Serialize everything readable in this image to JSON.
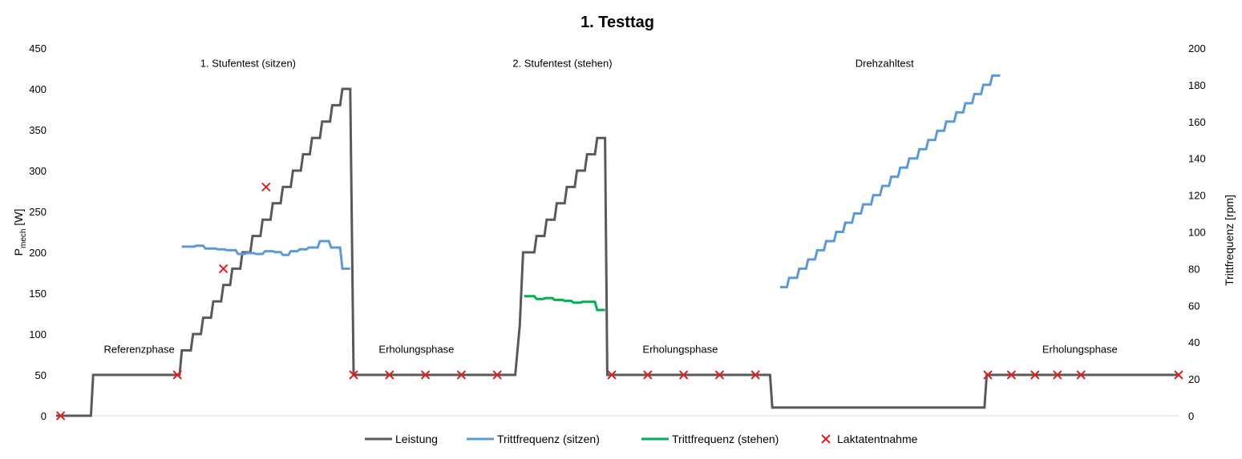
{
  "chart_data": {
    "type": "line",
    "title": "1. Testtag",
    "ylabel_left": {
      "main": "P",
      "sub": "mech",
      "unit": " [W]"
    },
    "ylabel_right": "Trittfrequenz [rpm]",
    "xlabel": "",
    "ylim_left": [
      0,
      450
    ],
    "ylim_right": [
      0,
      200
    ],
    "yticks_left": [
      "0",
      "50",
      "100",
      "150",
      "200",
      "250",
      "300",
      "350",
      "400",
      "450"
    ],
    "yticks_right": [
      "0",
      "20",
      "40",
      "60",
      "80",
      "100",
      "120",
      "140",
      "160",
      "180",
      "200"
    ],
    "xlim": [
      0,
      100
    ],
    "grid": false,
    "legend_position": "bottom",
    "annotations": [
      {
        "text": "1. Stufentest (sitzen)",
        "x": 17.1,
        "y": 432
      },
      {
        "text": "2. Stufentest (stehen)",
        "x": 45.1,
        "y": 432
      },
      {
        "text": "Drehzahltest",
        "x": 73.8,
        "y": 432
      },
      {
        "text": "Referenzphase",
        "x": 7.4,
        "y": 82
      },
      {
        "text": "Erholungsphase",
        "x": 32.1,
        "y": 82
      },
      {
        "text": "Erholungsphase",
        "x": 55.6,
        "y": 82
      },
      {
        "text": "Erholungsphase",
        "x": 91.2,
        "y": 82
      }
    ],
    "series": [
      {
        "name": "Leistung",
        "color": "#595959",
        "axis": "left",
        "points": [
          [
            0,
            0
          ],
          [
            3.1,
            0
          ],
          [
            3.3,
            50
          ],
          [
            11,
            50
          ],
          [
            11.2,
            80
          ],
          [
            12,
            80
          ],
          [
            12.2,
            100
          ],
          [
            12.9,
            100
          ],
          [
            13.1,
            120
          ],
          [
            13.8,
            120
          ],
          [
            14,
            140
          ],
          [
            14.7,
            140
          ],
          [
            14.9,
            160
          ],
          [
            15.5,
            160
          ],
          [
            15.7,
            180
          ],
          [
            16.4,
            180
          ],
          [
            16.6,
            200
          ],
          [
            17.3,
            200
          ],
          [
            17.5,
            220
          ],
          [
            18.2,
            220
          ],
          [
            18.4,
            240
          ],
          [
            19.1,
            240
          ],
          [
            19.3,
            260
          ],
          [
            20,
            260
          ],
          [
            20.2,
            280
          ],
          [
            20.9,
            280
          ],
          [
            21.1,
            300
          ],
          [
            21.8,
            300
          ],
          [
            22,
            320
          ],
          [
            22.6,
            320
          ],
          [
            22.8,
            340
          ],
          [
            23.5,
            340
          ],
          [
            23.7,
            360
          ],
          [
            24.4,
            360
          ],
          [
            24.6,
            380
          ],
          [
            25.3,
            380
          ],
          [
            25.5,
            400
          ],
          [
            26.2,
            400
          ],
          [
            26.5,
            50
          ],
          [
            40.9,
            50
          ],
          [
            41.1,
            80
          ],
          [
            41.3,
            110
          ],
          [
            41.6,
            200
          ],
          [
            42.6,
            200
          ],
          [
            42.8,
            220
          ],
          [
            43.5,
            220
          ],
          [
            43.7,
            240
          ],
          [
            44.4,
            240
          ],
          [
            44.6,
            260
          ],
          [
            45.3,
            260
          ],
          [
            45.5,
            280
          ],
          [
            46.2,
            280
          ],
          [
            46.4,
            300
          ],
          [
            47.1,
            300
          ],
          [
            47.3,
            320
          ],
          [
            48,
            320
          ],
          [
            48.2,
            340
          ],
          [
            48.9,
            340
          ],
          [
            49.1,
            50
          ],
          [
            63.6,
            50
          ],
          [
            63.8,
            10
          ],
          [
            82.7,
            10
          ],
          [
            82.9,
            50
          ],
          [
            100,
            50
          ]
        ]
      },
      {
        "name": "Trittfrequenz (sitzen)",
        "color": "#5b9bd5",
        "axis": "right",
        "points": [
          [
            11.2,
            92
          ],
          [
            12.3,
            92
          ],
          [
            12.5,
            92.5
          ],
          [
            13.1,
            92.5
          ],
          [
            13.3,
            91
          ],
          [
            14.2,
            91
          ],
          [
            14.4,
            90.5
          ],
          [
            15,
            90.5
          ],
          [
            15.2,
            90
          ],
          [
            16,
            90
          ],
          [
            16.2,
            88
          ],
          [
            16.8,
            88
          ],
          [
            17,
            88.5
          ],
          [
            17.6,
            88.5
          ],
          [
            17.8,
            88
          ],
          [
            18.4,
            88
          ],
          [
            18.6,
            89.5
          ],
          [
            19.3,
            89.5
          ],
          [
            19.5,
            89
          ],
          [
            20,
            89
          ],
          [
            20.2,
            87.5
          ],
          [
            20.7,
            87.5
          ],
          [
            20.9,
            89.5
          ],
          [
            21.5,
            89.5
          ],
          [
            21.7,
            90.5
          ],
          [
            22.3,
            90.5
          ],
          [
            22.5,
            91.5
          ],
          [
            23.3,
            91.5
          ],
          [
            23.5,
            95
          ],
          [
            24.3,
            95
          ],
          [
            24.5,
            91.5
          ],
          [
            25.3,
            91.5
          ],
          [
            25.5,
            80
          ],
          [
            26.2,
            80
          ]
        ]
      },
      {
        "name": "Trittfrequenz (stehen)",
        "color": "#00b050",
        "axis": "right",
        "points": [
          [
            41.7,
            65
          ],
          [
            42.6,
            65
          ],
          [
            42.8,
            63.5
          ],
          [
            43.4,
            63.5
          ],
          [
            43.6,
            64
          ],
          [
            44.2,
            64
          ],
          [
            44.4,
            63
          ],
          [
            45.1,
            63
          ],
          [
            45.3,
            62.5
          ],
          [
            45.9,
            62.5
          ],
          [
            46.1,
            61.5
          ],
          [
            46.7,
            61.5
          ],
          [
            46.9,
            62
          ],
          [
            48,
            62
          ],
          [
            48.2,
            57.5
          ],
          [
            48.9,
            57.5
          ]
        ]
      },
      {
        "name": "Trittfrequenz (sitzen)",
        "color": "#5b9bd5",
        "axis": "right",
        "legend": false,
        "points": [
          [
            64.5,
            70
          ],
          [
            65.1,
            70
          ],
          [
            65.3,
            75
          ],
          [
            66,
            75
          ],
          [
            66.2,
            80
          ],
          [
            66.8,
            80
          ],
          [
            67,
            85
          ],
          [
            67.6,
            85
          ],
          [
            67.8,
            90
          ],
          [
            68.4,
            90
          ],
          [
            68.6,
            95
          ],
          [
            69.3,
            95
          ],
          [
            69.5,
            100
          ],
          [
            70.1,
            100
          ],
          [
            70.3,
            105
          ],
          [
            70.9,
            105
          ],
          [
            71.1,
            110
          ],
          [
            71.7,
            110
          ],
          [
            71.9,
            115
          ],
          [
            72.6,
            115
          ],
          [
            72.8,
            120
          ],
          [
            73.4,
            120
          ],
          [
            73.6,
            125
          ],
          [
            74.2,
            125
          ],
          [
            74.4,
            130
          ],
          [
            75,
            130
          ],
          [
            75.2,
            135
          ],
          [
            75.8,
            135
          ],
          [
            76,
            140
          ],
          [
            76.7,
            140
          ],
          [
            76.9,
            145
          ],
          [
            77.5,
            145
          ],
          [
            77.7,
            150
          ],
          [
            78.3,
            150
          ],
          [
            78.5,
            155
          ],
          [
            79.1,
            155
          ],
          [
            79.3,
            160
          ],
          [
            80,
            160
          ],
          [
            80.2,
            165
          ],
          [
            80.8,
            165
          ],
          [
            81,
            170
          ],
          [
            81.6,
            170
          ],
          [
            81.8,
            175
          ],
          [
            82.4,
            175
          ],
          [
            82.6,
            180
          ],
          [
            83.2,
            180
          ],
          [
            83.4,
            185
          ],
          [
            84.1,
            185
          ]
        ]
      }
    ],
    "markers": {
      "name": "Laktatentnahme",
      "color": "#e02020",
      "points": [
        [
          0.4,
          0
        ],
        [
          10.8,
          50
        ],
        [
          14.9,
          180
        ],
        [
          18.7,
          280
        ],
        [
          26.5,
          50
        ],
        [
          29.7,
          50
        ],
        [
          32.9,
          50
        ],
        [
          36.1,
          50
        ],
        [
          39.3,
          50
        ],
        [
          49.5,
          50
        ],
        [
          52.7,
          50
        ],
        [
          55.9,
          50
        ],
        [
          59.1,
          50
        ],
        [
          62.3,
          50
        ],
        [
          83,
          50
        ],
        [
          85.1,
          50
        ],
        [
          87.2,
          50
        ],
        [
          89.2,
          50
        ],
        [
          91.3,
          50
        ],
        [
          100,
          50
        ]
      ]
    },
    "legend": [
      {
        "label": "Leistung",
        "color": "#595959",
        "kind": "line"
      },
      {
        "label": "Trittfrequenz (sitzen)",
        "color": "#5b9bd5",
        "kind": "line"
      },
      {
        "label": "Trittfrequenz (stehen)",
        "color": "#00b050",
        "kind": "line"
      },
      {
        "label": "Laktatentnahme",
        "color": "#e02020",
        "kind": "marker"
      }
    ]
  }
}
